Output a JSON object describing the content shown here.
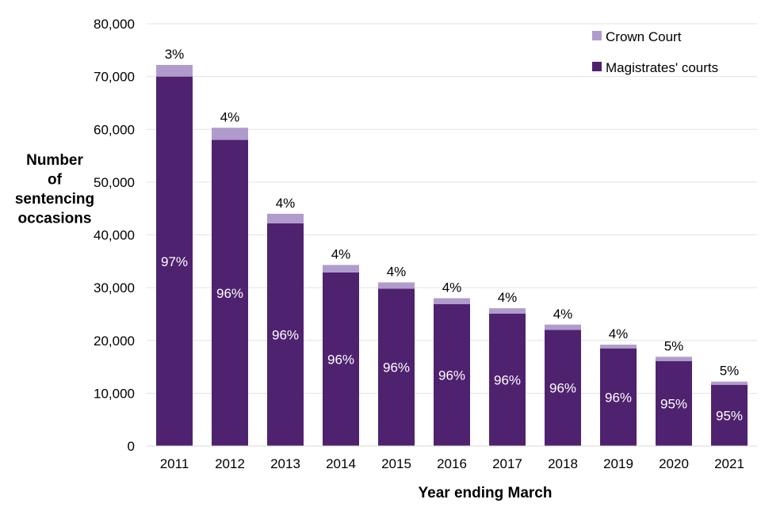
{
  "chart_data": {
    "type": "bar",
    "stacked": true,
    "categories": [
      "2011",
      "2012",
      "2013",
      "2014",
      "2015",
      "2016",
      "2017",
      "2018",
      "2019",
      "2020",
      "2021"
    ],
    "series": [
      {
        "name": "Magistrates' courts",
        "color": "#4f2270",
        "values": [
          70000,
          58000,
          42200,
          32900,
          29800,
          26900,
          25100,
          22000,
          18500,
          16100,
          11600
        ],
        "labels": [
          "97%",
          "96%",
          "96%",
          "96%",
          "96%",
          "96%",
          "96%",
          "96%",
          "96%",
          "95%",
          "95%"
        ]
      },
      {
        "name": "Crown Court",
        "color": "#b09ccc",
        "values": [
          2200,
          2300,
          1800,
          1400,
          1200,
          1100,
          1000,
          1000,
          700,
          800,
          600
        ],
        "labels": [
          "3%",
          "4%",
          "4%",
          "4%",
          "4%",
          "4%",
          "4%",
          "4%",
          "4%",
          "5%",
          "5%"
        ]
      }
    ],
    "ylabel": [
      "Number",
      "of",
      "sentencing",
      "occasions"
    ],
    "xlabel": "Year ending March",
    "ylim": [
      0,
      80000
    ],
    "yticks": [
      "0",
      "10,000",
      "20,000",
      "30,000",
      "40,000",
      "50,000",
      "60,000",
      "70,000",
      "80,000"
    ],
    "grid": true,
    "legend_position": "top-right"
  }
}
